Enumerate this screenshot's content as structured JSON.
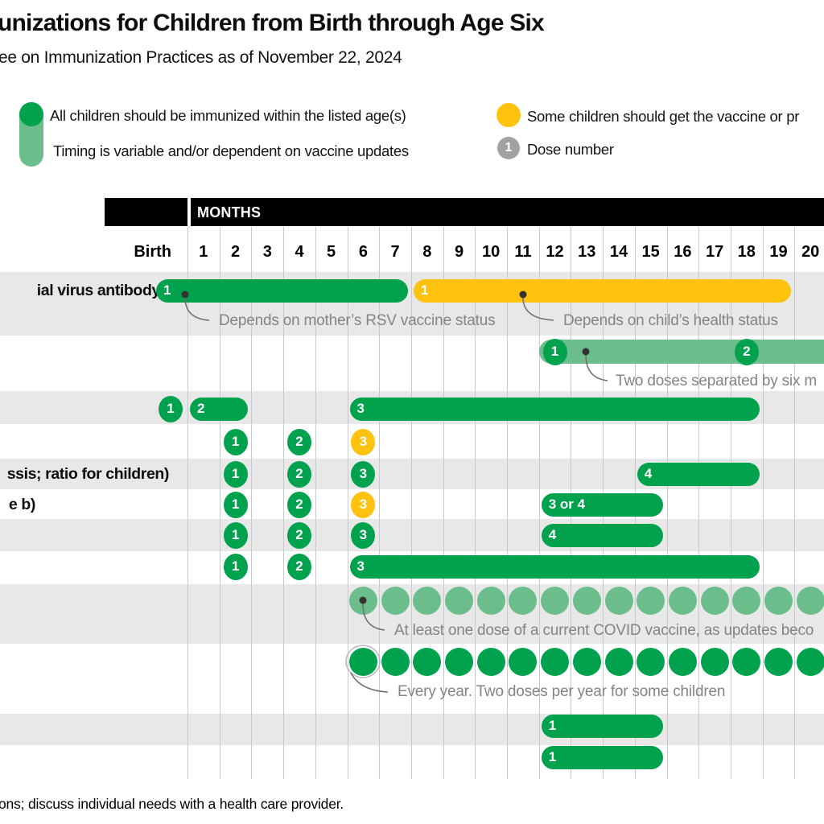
{
  "title": "unizations for Children from Birth through Age Six",
  "subtitle": "ee on Immunization Practices as of November 22, 2024",
  "legend": {
    "all_children": "All children should be immunized within the listed age(s)",
    "timing_variable": "Timing is variable and/or dependent on vaccine updates",
    "some_children": "Some children should get the vaccine or pr",
    "dose_number_label": "Dose number",
    "dose_number_example": "1"
  },
  "header": {
    "months_label": "MONTHS",
    "birth_label": "Birth",
    "months": [
      "1",
      "2",
      "3",
      "4",
      "5",
      "6",
      "7",
      "8",
      "9",
      "10",
      "11",
      "12",
      "13",
      "14",
      "15",
      "16",
      "17",
      "18",
      "19",
      "20"
    ]
  },
  "footer_note": "ons; discuss individual needs with a health care provider.",
  "colors": {
    "green": "#00A24D",
    "light_green": "#6BBE8C",
    "yellow": "#FFC20E",
    "gray_band": "#E8E8E8",
    "gridline": "#C9C9C9",
    "annotation_text": "#848484",
    "dose_gray": "#A1A1A1"
  },
  "chart_data": {
    "type": "table",
    "unit": "months",
    "axis": {
      "start_label": "Birth",
      "month_range": [
        1,
        20
      ]
    },
    "rows": [
      {
        "label": "ial virus antibody)",
        "band": "gray",
        "items": [
          {
            "kind": "pill",
            "color": "green",
            "from_birth": true,
            "to": 7,
            "dose": "1"
          },
          {
            "kind": "pill",
            "color": "yellow",
            "from": 8,
            "to": 19,
            "dose": "1"
          }
        ]
      },
      {
        "label": "",
        "band": "white",
        "items": [
          {
            "kind": "bar",
            "color": "light_green",
            "from": 12,
            "bleed_right": true
          },
          {
            "kind": "circle",
            "color": "green",
            "at": 12,
            "dose": "1"
          },
          {
            "kind": "circle",
            "color": "green",
            "at": 18,
            "dose": "2"
          }
        ]
      },
      {
        "label": "",
        "band": "gray",
        "items": [
          {
            "kind": "circle",
            "color": "green",
            "at_birth": true,
            "dose": "1"
          },
          {
            "kind": "pill",
            "color": "green",
            "from": 1,
            "to": 2,
            "dose": "2"
          },
          {
            "kind": "pill",
            "color": "green",
            "from": 6,
            "to": 18,
            "dose": "3"
          }
        ]
      },
      {
        "label": "",
        "band": "white",
        "items": [
          {
            "kind": "circle",
            "color": "green",
            "at": 2,
            "dose": "1"
          },
          {
            "kind": "circle",
            "color": "green",
            "at": 4,
            "dose": "2"
          },
          {
            "kind": "circle",
            "color": "yellow",
            "at": 6,
            "dose": "3"
          }
        ]
      },
      {
        "label": "ssis; ratio for children)",
        "band": "gray",
        "items": [
          {
            "kind": "circle",
            "color": "green",
            "at": 2,
            "dose": "1"
          },
          {
            "kind": "circle",
            "color": "green",
            "at": 4,
            "dose": "2"
          },
          {
            "kind": "circle",
            "color": "green",
            "at": 6,
            "dose": "3"
          },
          {
            "kind": "pill",
            "color": "green",
            "from": 15,
            "to": 18,
            "dose": "4"
          }
        ]
      },
      {
        "label": "e b)",
        "band": "white",
        "items": [
          {
            "kind": "circle",
            "color": "green",
            "at": 2,
            "dose": "1"
          },
          {
            "kind": "circle",
            "color": "green",
            "at": 4,
            "dose": "2"
          },
          {
            "kind": "circle",
            "color": "yellow",
            "at": 6,
            "dose": "3"
          },
          {
            "kind": "pill",
            "color": "green",
            "from": 12,
            "to": 15,
            "dose": "3 or 4"
          }
        ]
      },
      {
        "label": "",
        "band": "gray",
        "items": [
          {
            "kind": "circle",
            "color": "green",
            "at": 2,
            "dose": "1"
          },
          {
            "kind": "circle",
            "color": "green",
            "at": 4,
            "dose": "2"
          },
          {
            "kind": "circle",
            "color": "green",
            "at": 6,
            "dose": "3"
          },
          {
            "kind": "pill",
            "color": "green",
            "from": 12,
            "to": 15,
            "dose": "4"
          }
        ]
      },
      {
        "label": "",
        "band": "white",
        "items": [
          {
            "kind": "circle",
            "color": "green",
            "at": 2,
            "dose": "1"
          },
          {
            "kind": "circle",
            "color": "green",
            "at": 4,
            "dose": "2"
          },
          {
            "kind": "pill",
            "color": "green",
            "from": 6,
            "to": 18,
            "dose": "3"
          }
        ]
      },
      {
        "label": "",
        "band": "gray",
        "items": [
          {
            "kind": "dots",
            "color": "light_green",
            "from": 6,
            "to": 20,
            "marker_dot_on_first": true
          }
        ]
      },
      {
        "label": "",
        "band": "white",
        "items": [
          {
            "kind": "dots",
            "color": "green",
            "from": 6,
            "to": 20,
            "ring_on_first": true
          }
        ]
      },
      {
        "label": "",
        "band": "gray",
        "items": [
          {
            "kind": "pill",
            "color": "green",
            "from": 12,
            "to": 15,
            "dose": "1"
          }
        ]
      },
      {
        "label": "",
        "band": "white",
        "items": [
          {
            "kind": "pill",
            "color": "green",
            "from": 12,
            "to": 15,
            "dose": "1"
          }
        ]
      }
    ],
    "annotations": [
      {
        "text": "Depends on mother’s RSV vaccine status"
      },
      {
        "text": "Depends on child’s health status"
      },
      {
        "text": "Two doses separated by six m"
      },
      {
        "text": "At least one dose of a current COVID vaccine, as updates beco"
      },
      {
        "text": "Every year. Two doses per year for some children"
      }
    ]
  }
}
